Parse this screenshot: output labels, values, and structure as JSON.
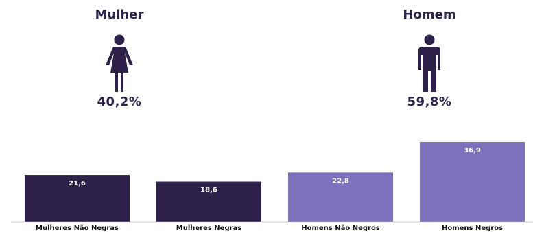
{
  "summary": {
    "female": {
      "label": "Mulher",
      "value": "40,2%",
      "icon": "woman-icon"
    },
    "male": {
      "label": "Homem",
      "value": "59,8%",
      "icon": "man-icon"
    }
  },
  "colors": {
    "dark": "#2d2149",
    "light": "#7e72bc",
    "text": "#2f2350",
    "axis": "#bdbdbd"
  },
  "chart_data": {
    "type": "bar",
    "categories": [
      "Mulheres Não Negras",
      "Mulheres Negras",
      "Homens Não Negros",
      "Homens Negros"
    ],
    "values": [
      21.6,
      18.6,
      22.8,
      36.9
    ],
    "value_labels": [
      "21,6",
      "18,6",
      "22,8",
      "36,9"
    ],
    "bar_colors": [
      "#2d2149",
      "#2d2149",
      "#7e72bc",
      "#7e72bc"
    ],
    "title": "",
    "xlabel": "",
    "ylabel": "",
    "ylim": [
      0,
      37
    ],
    "grid": false,
    "legend": "none"
  }
}
